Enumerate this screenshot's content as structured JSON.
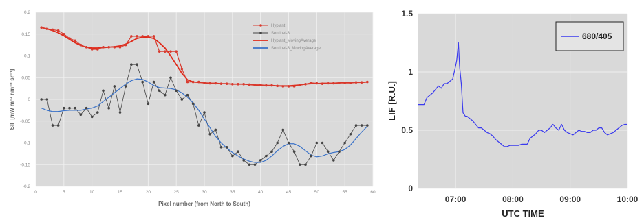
{
  "chart_data": [
    {
      "type": "line",
      "xlabel": "Pixel number (from North to South)",
      "ylabel": "SIF [mW m⁻² nm⁻¹ sr⁻¹]",
      "xlim": [
        0,
        60
      ],
      "ylim": [
        -0.2,
        0.2
      ],
      "x_ticks": [
        "0",
        "5",
        "10",
        "15",
        "20",
        "25",
        "30",
        "35",
        "40",
        "45",
        "50",
        "55",
        "60"
      ],
      "y_ticks": [
        "-0.2",
        "-0.15",
        "-0.1",
        "-0.05",
        "0",
        "0.05",
        "0.1",
        "0.15",
        "0.2"
      ],
      "grid": true,
      "legend_position": "top-right",
      "x": [
        1,
        2,
        3,
        4,
        5,
        6,
        7,
        8,
        9,
        10,
        11,
        12,
        13,
        14,
        15,
        16,
        17,
        18,
        19,
        20,
        21,
        22,
        23,
        24,
        25,
        26,
        27,
        28,
        29,
        30,
        31,
        32,
        33,
        34,
        35,
        36,
        37,
        38,
        39,
        40,
        41,
        42,
        43,
        44,
        45,
        46,
        47,
        48,
        49,
        50,
        51,
        52,
        53,
        54,
        55,
        56,
        57,
        58,
        59
      ],
      "series": [
        {
          "name": "Hyplant",
          "color": "#d83a2e",
          "marker": "dot",
          "values": [
            0.165,
            0.162,
            0.16,
            0.158,
            0.15,
            0.14,
            0.135,
            0.125,
            0.12,
            0.115,
            0.115,
            0.12,
            0.12,
            0.12,
            0.12,
            0.125,
            0.145,
            0.145,
            0.145,
            0.145,
            0.145,
            0.11,
            0.11,
            0.11,
            0.11,
            0.07,
            0.04,
            0.04,
            0.04,
            0.038,
            0.037,
            0.037,
            0.036,
            0.036,
            0.035,
            0.035,
            0.035,
            0.034,
            0.033,
            0.033,
            0.032,
            0.032,
            0.031,
            0.03,
            0.03,
            0.03,
            0.033,
            0.035,
            0.038,
            0.037,
            0.036,
            0.037,
            0.037,
            0.038,
            0.038,
            0.038,
            0.039,
            0.039,
            0.04
          ]
        },
        {
          "name": "Sentinel-3",
          "color": "#444444",
          "marker": "dot",
          "values": [
            0,
            0,
            -0.06,
            -0.06,
            -0.02,
            -0.02,
            -0.02,
            -0.035,
            -0.02,
            -0.04,
            -0.03,
            0.02,
            -0.02,
            0.03,
            -0.03,
            0.03,
            0.08,
            0.08,
            0.04,
            -0.01,
            0.04,
            0.02,
            0.01,
            0.05,
            0.02,
            0,
            0.01,
            -0.01,
            -0.06,
            -0.03,
            -0.08,
            -0.07,
            -0.11,
            -0.11,
            -0.13,
            -0.12,
            -0.14,
            -0.15,
            -0.15,
            -0.14,
            -0.13,
            -0.12,
            -0.1,
            -0.07,
            -0.1,
            -0.12,
            -0.15,
            -0.15,
            -0.13,
            -0.1,
            -0.1,
            -0.12,
            -0.14,
            -0.12,
            -0.1,
            -0.08,
            -0.06,
            -0.06,
            -0.06
          ]
        },
        {
          "name": "Hyplant_MovingAverage",
          "color": "#e02a1a",
          "marker": "none",
          "values": [
            0.165,
            0.162,
            0.158,
            0.153,
            0.146,
            0.138,
            0.13,
            0.124,
            0.12,
            0.118,
            0.118,
            0.119,
            0.12,
            0.121,
            0.123,
            0.127,
            0.133,
            0.14,
            0.143,
            0.143,
            0.14,
            0.13,
            0.118,
            0.1,
            0.08,
            0.06,
            0.045,
            0.04,
            0.039,
            0.038,
            0.037,
            0.037,
            0.036,
            0.036,
            0.035,
            0.035,
            0.035,
            0.034,
            0.033,
            0.033,
            0.032,
            0.032,
            0.031,
            0.031,
            0.031,
            0.032,
            0.033,
            0.035,
            0.036,
            0.036,
            0.037,
            0.037,
            0.037,
            0.038,
            0.038,
            0.038,
            0.039,
            0.039,
            0.04
          ]
        },
        {
          "name": "Sentinel-3_MovingAverage",
          "color": "#3a72c8",
          "marker": "none",
          "values": [
            -0.02,
            -0.025,
            -0.028,
            -0.028,
            -0.026,
            -0.025,
            -0.025,
            -0.025,
            -0.022,
            -0.02,
            -0.015,
            -0.005,
            0.005,
            0.015,
            0.025,
            0.035,
            0.043,
            0.047,
            0.046,
            0.04,
            0.032,
            0.027,
            0.026,
            0.025,
            0.022,
            0.015,
            0.005,
            -0.008,
            -0.025,
            -0.045,
            -0.065,
            -0.085,
            -0.1,
            -0.112,
            -0.122,
            -0.13,
            -0.137,
            -0.142,
            -0.145,
            -0.145,
            -0.14,
            -0.13,
            -0.118,
            -0.108,
            -0.102,
            -0.102,
            -0.108,
            -0.118,
            -0.128,
            -0.132,
            -0.13,
            -0.125,
            -0.122,
            -0.12,
            -0.115,
            -0.105,
            -0.09,
            -0.075,
            -0.062
          ]
        }
      ]
    },
    {
      "type": "line",
      "xlabel": "UTC TIME",
      "ylabel": "LIF [R.U.]",
      "x_unit": "hours UTC",
      "xlim": [
        6.35,
        10.0
      ],
      "ylim": [
        0,
        1.5
      ],
      "x_ticks": [
        "07:00",
        "08:00",
        "09:00",
        "10:00"
      ],
      "y_ticks": [
        "0",
        "0.5",
        "1",
        "1.5"
      ],
      "grid": true,
      "legend_position": "top-right",
      "series": [
        {
          "name": "680/405",
          "color": "#3a3aee",
          "x": [
            6.35,
            6.45,
            6.5,
            6.55,
            6.6,
            6.7,
            6.75,
            6.8,
            6.85,
            6.9,
            6.95,
            7.0,
            7.02,
            7.05,
            7.07,
            7.1,
            7.13,
            7.17,
            7.2,
            7.25,
            7.3,
            7.35,
            7.4,
            7.45,
            7.5,
            7.55,
            7.6,
            7.65,
            7.7,
            7.75,
            7.8,
            7.85,
            7.9,
            7.95,
            8.0,
            8.05,
            8.1,
            8.15,
            8.2,
            8.25,
            8.3,
            8.35,
            8.4,
            8.45,
            8.5,
            8.55,
            8.6,
            8.65,
            8.7,
            8.75,
            8.8,
            8.85,
            8.9,
            8.95,
            9.0,
            9.05,
            9.1,
            9.15,
            9.2,
            9.25,
            9.3,
            9.35,
            9.4,
            9.45,
            9.5,
            9.55,
            9.6,
            9.65,
            9.7,
            9.75,
            9.8,
            9.85,
            9.9,
            9.95,
            10.0
          ],
          "y": [
            0.72,
            0.72,
            0.78,
            0.8,
            0.82,
            0.88,
            0.86,
            0.9,
            0.9,
            0.92,
            0.94,
            1.05,
            1.1,
            1.25,
            1.05,
            0.9,
            0.65,
            0.62,
            0.62,
            0.6,
            0.58,
            0.55,
            0.52,
            0.52,
            0.5,
            0.48,
            0.47,
            0.45,
            0.42,
            0.4,
            0.38,
            0.36,
            0.36,
            0.37,
            0.37,
            0.37,
            0.37,
            0.38,
            0.38,
            0.38,
            0.43,
            0.45,
            0.47,
            0.5,
            0.5,
            0.48,
            0.5,
            0.52,
            0.55,
            0.52,
            0.5,
            0.55,
            0.5,
            0.48,
            0.47,
            0.46,
            0.48,
            0.5,
            0.49,
            0.49,
            0.48,
            0.48,
            0.5,
            0.5,
            0.52,
            0.52,
            0.48,
            0.46,
            0.47,
            0.48,
            0.5,
            0.52,
            0.54,
            0.55,
            0.55
          ]
        }
      ]
    }
  ]
}
